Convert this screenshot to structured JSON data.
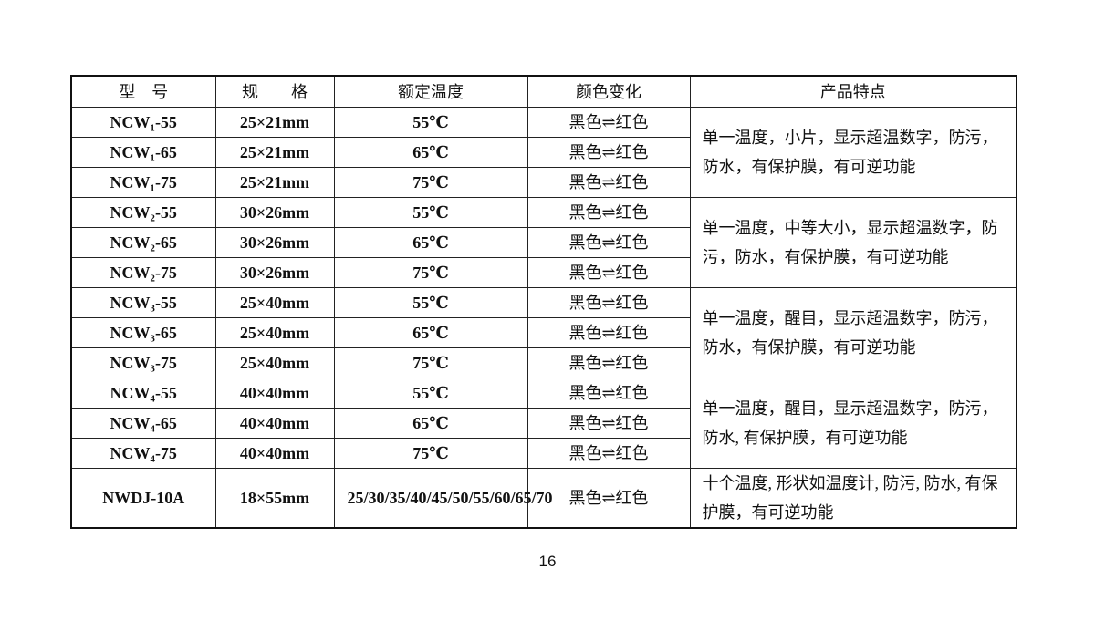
{
  "table": {
    "headers": [
      "型　号",
      "规　　格",
      "额定温度",
      "颜色变化",
      "产品特点"
    ],
    "groups": [
      {
        "rows": [
          {
            "model": "NCW₁-55",
            "size": "25×21mm",
            "temp": "55℃",
            "color": "黑色⇌红色"
          },
          {
            "model": "NCW₁-65",
            "size": "25×21mm",
            "temp": "65℃",
            "color": "黑色⇌红色"
          },
          {
            "model": "NCW₁-75",
            "size": "25×21mm",
            "temp": "75℃",
            "color": "黑色⇌红色"
          }
        ],
        "feature": "单一温度，小片，显示超温数字，防污，防水，有保护膜，有可逆功能"
      },
      {
        "rows": [
          {
            "model": "NCW₂-55",
            "size": "30×26mm",
            "temp": "55℃",
            "color": "黑色⇌红色"
          },
          {
            "model": "NCW₂-65",
            "size": "30×26mm",
            "temp": "65℃",
            "color": "黑色⇌红色"
          },
          {
            "model": "NCW₂-75",
            "size": "30×26mm",
            "temp": "75℃",
            "color": "黑色⇌红色"
          }
        ],
        "feature": "单一温度，中等大小，显示超温数字，防污，防水，有保护膜，有可逆功能"
      },
      {
        "rows": [
          {
            "model": "NCW₃-55",
            "size": "25×40mm",
            "temp": "55℃",
            "color": "黑色⇌红色"
          },
          {
            "model": "NCW₃-65",
            "size": "25×40mm",
            "temp": "65℃",
            "color": "黑色⇌红色"
          },
          {
            "model": "NCW₃-75",
            "size": "25×40mm",
            "temp": "75℃",
            "color": "黑色⇌红色"
          }
        ],
        "feature": "单一温度，醒目，显示超温数字，防污，防水，有保护膜，有可逆功能"
      },
      {
        "rows": [
          {
            "model": "NCW₄-55",
            "size": "40×40mm",
            "temp": "55℃",
            "color": "黑色⇌红色"
          },
          {
            "model": "NCW₄-65",
            "size": "40×40mm",
            "temp": "65℃",
            "color": "黑色⇌红色"
          },
          {
            "model": "NCW₄-75",
            "size": "40×40mm",
            "temp": "75℃",
            "color": "黑色⇌红色"
          }
        ],
        "feature": "单一温度，醒目，显示超温数字，防污，防水, 有保护膜，有可逆功能"
      },
      {
        "rows": [
          {
            "model": "NWDJ-10A",
            "size": "18×55mm",
            "temp": "25/30/35/40/45/50/55/60/65/70",
            "color": "黑色⇌红色"
          }
        ],
        "feature": "十个温度, 形状如温度计, 防污, 防水, 有保护膜，有可逆功能",
        "tall": true
      }
    ]
  },
  "page_number": "16"
}
